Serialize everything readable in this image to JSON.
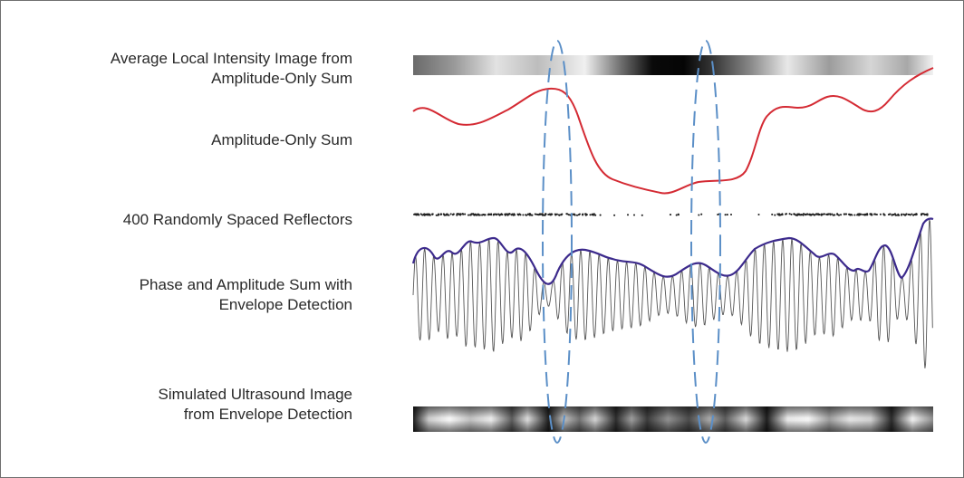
{
  "labels": {
    "avg_intensity_line1": "Average Local Intensity Image  from",
    "avg_intensity_line2": "Amplitude-Only Sum",
    "amplitude_only": "Amplitude-Only Sum",
    "reflectors": "400 Randomly Spaced Reflectors",
    "phase_amp_line1": "Phase and Amplitude Sum with",
    "phase_amp_line2": "Envelope Detection",
    "simulated_line1": "Simulated Ultrasound Image",
    "simulated_line2": "from Envelope Detection"
  },
  "colors": {
    "amplitude_curve": "#d42a33",
    "envelope_curve": "#3c2a8c",
    "waveform": "#555555",
    "highlight_ellipse": "#5b8fc7",
    "reflector_dots": "#222222",
    "label_text": "#2a2a2a"
  },
  "reflector_count": 400
}
